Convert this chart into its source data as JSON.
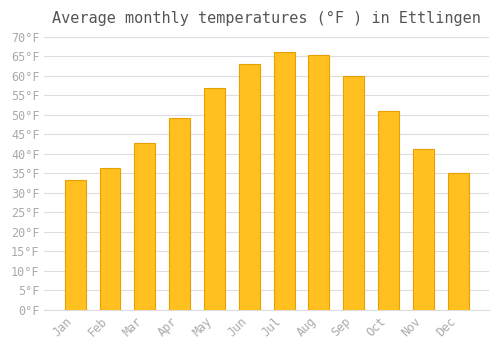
{
  "title": "Average monthly temperatures (°F ) in Ettlingen",
  "months": [
    "Jan",
    "Feb",
    "Mar",
    "Apr",
    "May",
    "Jun",
    "Jul",
    "Aug",
    "Sep",
    "Oct",
    "Nov",
    "Dec"
  ],
  "values": [
    33.3,
    36.3,
    42.8,
    49.3,
    57.0,
    63.0,
    66.2,
    65.5,
    59.9,
    51.1,
    41.2,
    35.1
  ],
  "bar_color": "#FFC020",
  "bar_edge_color": "#E8A000",
  "background_color": "#FFFFFF",
  "grid_color": "#DDDDDD",
  "text_color": "#AAAAAA",
  "title_color": "#555555",
  "ylim": [
    0,
    70
  ],
  "yticks": [
    0,
    5,
    10,
    15,
    20,
    25,
    30,
    35,
    40,
    45,
    50,
    55,
    60,
    65,
    70
  ],
  "ylabel_suffix": "°F",
  "title_fontsize": 11,
  "tick_fontsize": 8.5
}
